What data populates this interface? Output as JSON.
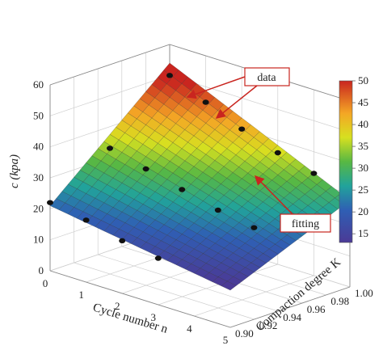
{
  "chart_data": {
    "type": "surface3d",
    "xlabel": "Cycle number n",
    "ylabel": "Compaction degree K",
    "zlabel": "c (kpa)",
    "x_ticks": [
      "0",
      "1",
      "2",
      "3",
      "4",
      "5"
    ],
    "y_ticks": [
      "0.90",
      "0.92",
      "0.94",
      "0.96",
      "0.98",
      "1.00"
    ],
    "z_ticks": [
      "0",
      "10",
      "20",
      "30",
      "40",
      "50",
      "60"
    ],
    "xlim": [
      0,
      5
    ],
    "ylim": [
      0.9,
      1.0
    ],
    "zlim": [
      0,
      60
    ],
    "colorbar": {
      "min": 13,
      "max": 50,
      "ticks": [
        "15",
        "20",
        "25",
        "30",
        "35",
        "40",
        "45",
        "50"
      ]
    },
    "grid": true,
    "annotations": [
      {
        "id": "data",
        "text": "data"
      },
      {
        "id": "fitting",
        "text": "fitting"
      }
    ],
    "fitting_surface": {
      "corners": [
        {
          "n": 0,
          "K": 0.9,
          "c": 21
        },
        {
          "n": 0,
          "K": 1.0,
          "c": 54
        },
        {
          "n": 5,
          "K": 0.9,
          "c": 12
        },
        {
          "n": 5,
          "K": 1.0,
          "c": 28
        }
      ]
    },
    "points": [
      {
        "n": 0,
        "K": 0.9,
        "c": 22
      },
      {
        "n": 1,
        "K": 0.9,
        "c": 20
      },
      {
        "n": 2,
        "K": 0.9,
        "c": 17
      },
      {
        "n": 3,
        "K": 0.9,
        "c": 15
      },
      {
        "n": 0,
        "K": 0.95,
        "c": 33
      },
      {
        "n": 1,
        "K": 0.95,
        "c": 30
      },
      {
        "n": 2,
        "K": 0.95,
        "c": 27
      },
      {
        "n": 3,
        "K": 0.95,
        "c": 24
      },
      {
        "n": 4,
        "K": 0.95,
        "c": 22
      },
      {
        "n": 0,
        "K": 1.0,
        "c": 50
      },
      {
        "n": 1,
        "K": 1.0,
        "c": 45
      },
      {
        "n": 2,
        "K": 1.0,
        "c": 40
      },
      {
        "n": 3,
        "K": 1.0,
        "c": 36
      },
      {
        "n": 4,
        "K": 1.0,
        "c": 33
      }
    ]
  }
}
